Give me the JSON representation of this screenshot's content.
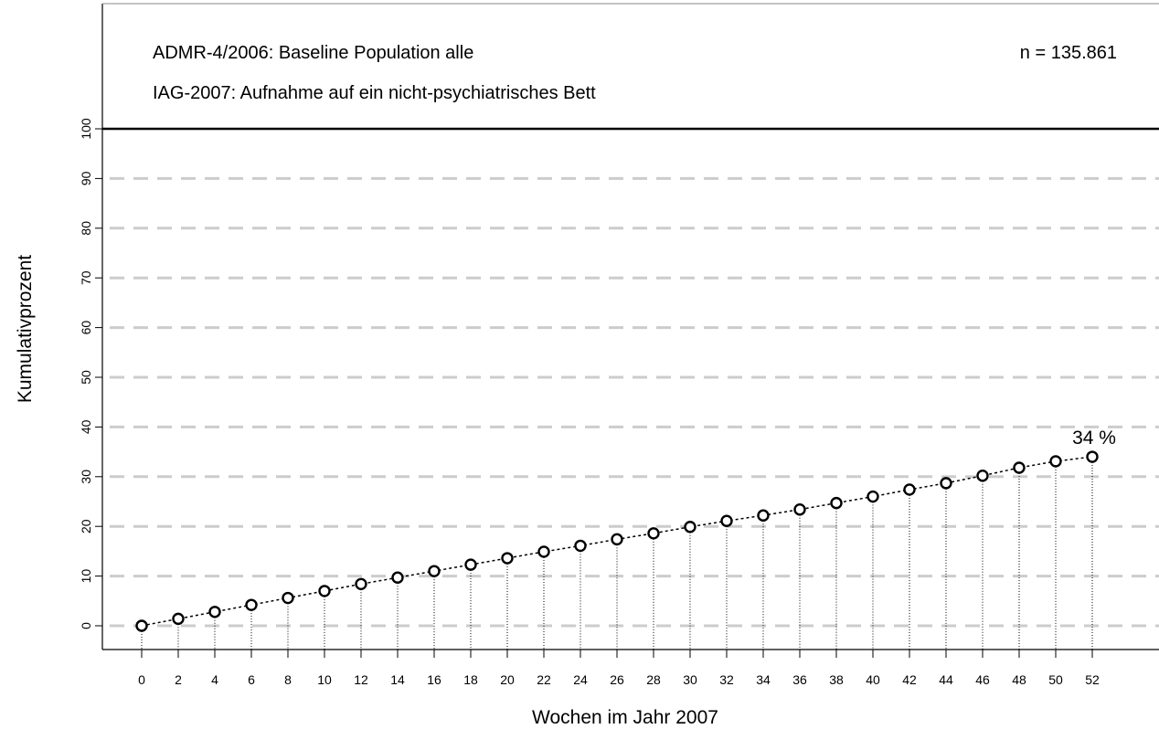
{
  "chart_data": {
    "type": "line",
    "title": "",
    "annotation_line1": "ADMR-4/2006: Baseline Population alle",
    "annotation_line2": "IAG-2007: Aufnahme auf ein nicht-psychiatrisches Bett",
    "n_label": "n = 135.861",
    "xlabel": "Wochen im Jahr 2007",
    "ylabel": "Kumulativprozent",
    "end_label": "34 %",
    "ylim": [
      0,
      100
    ],
    "xlim": [
      0,
      52
    ],
    "yticks": [
      0,
      10,
      20,
      30,
      40,
      50,
      60,
      70,
      80,
      90,
      100
    ],
    "grid": "horizontal-dashed",
    "series": [
      {
        "x": [
          0,
          2,
          4,
          6,
          8,
          10,
          12,
          14,
          16,
          18,
          20,
          22,
          24,
          26,
          28,
          30,
          32,
          34,
          36,
          38,
          40,
          42,
          44,
          46,
          48,
          50,
          52
        ],
        "values": [
          0,
          1.4,
          2.8,
          4.2,
          5.6,
          7.0,
          8.4,
          9.7,
          11.0,
          12.3,
          13.6,
          14.9,
          16.1,
          17.4,
          18.6,
          19.9,
          21.1,
          22.2,
          23.4,
          24.7,
          26.0,
          27.4,
          28.7,
          30.2,
          31.8,
          33.1,
          34.0
        ]
      }
    ],
    "colors": {
      "line": "#000000",
      "grid": "#cccccc",
      "frame": "#000000"
    }
  }
}
